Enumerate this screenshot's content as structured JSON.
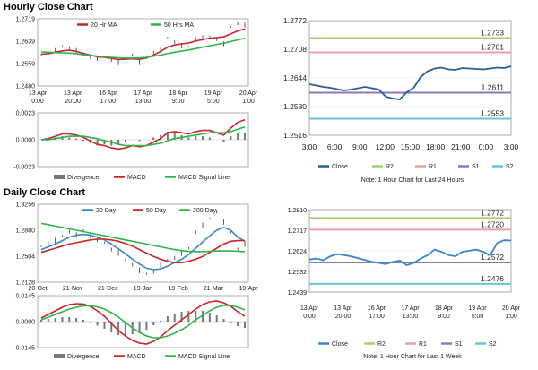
{
  "section_titles": {
    "hourly": "Hourly Close Chart",
    "daily": "Daily Close Chart"
  },
  "colors": {
    "green": "#2db34a",
    "red": "#c9252b",
    "blue": "#3c86c4",
    "navy": "#2c5e91",
    "purple": "#8a79b8",
    "olive": "#a6cf75",
    "pink": "#e7a1a4",
    "cyan": "#6cc1dc",
    "grey": "#777777"
  },
  "chart_data": [
    {
      "id": "hourly-price",
      "type": "line",
      "legend": [
        "20 Hr MA",
        "50 Hrs MA"
      ],
      "yticks": [
        "1.2719",
        "1.2639",
        "1.2559",
        "1.2480"
      ],
      "ylim": [
        1.248,
        1.2719
      ],
      "xticks": [
        [
          "13 Apr",
          "0:00"
        ],
        [
          "13 Apr",
          "20:00"
        ],
        [
          "16 Apr",
          "17:00"
        ],
        [
          "17 Apr",
          "13:00"
        ],
        [
          "18 Apr",
          "9:00"
        ],
        [
          "19 Apr",
          "5:00"
        ],
        [
          "20 Apr",
          "1:00"
        ]
      ],
      "close": [
        1.259,
        1.2596,
        1.2606,
        1.2622,
        1.2616,
        1.2607,
        1.2589,
        1.2582,
        1.2578,
        1.2585,
        1.2572,
        1.2566,
        1.2578,
        1.259,
        1.2566,
        1.2578,
        1.2599,
        1.2612,
        1.2651,
        1.2636,
        1.2622,
        1.2619,
        1.2649,
        1.2652,
        1.2655,
        1.2646,
        1.263,
        1.269,
        1.2702,
        1.2697
      ],
      "ma20": [
        1.2593,
        1.2595,
        1.26,
        1.2605,
        1.2607,
        1.2603,
        1.2596,
        1.259,
        1.2584,
        1.2582,
        1.2578,
        1.2574,
        1.2575,
        1.2577,
        1.2575,
        1.258,
        1.259,
        1.2603,
        1.2618,
        1.2626,
        1.263,
        1.2633,
        1.264,
        1.2645,
        1.265,
        1.2652,
        1.2655,
        1.2665,
        1.2676,
        1.2683
      ],
      "ma50": [
        1.2601,
        1.26,
        1.2599,
        1.2598,
        1.2597,
        1.2595,
        1.2592,
        1.2589,
        1.2586,
        1.2584,
        1.2582,
        1.258,
        1.2579,
        1.2579,
        1.258,
        1.2582,
        1.2586,
        1.259,
        1.2595,
        1.26,
        1.2604,
        1.2608,
        1.2613,
        1.2618,
        1.2623,
        1.2628,
        1.2632,
        1.2638,
        1.2644,
        1.265
      ]
    },
    {
      "id": "hourly-macd",
      "type": "line",
      "yticks": [
        "0.0023",
        "0.0000",
        "-0.0023"
      ],
      "ylim": [
        -0.0023,
        0.0023
      ],
      "legend": [
        "Divergence",
        "MACD",
        "MACD Signal Line"
      ],
      "macd": [
        0.0,
        0.0001,
        0.0003,
        0.0005,
        0.0005,
        0.0004,
        0.0002,
        -0.0001,
        -0.0004,
        -0.0005,
        -0.0007,
        -0.0008,
        -0.0007,
        -0.0005,
        -0.0006,
        -0.0005,
        -0.0002,
        0.0001,
        0.0006,
        0.0007,
        0.0006,
        0.0005,
        0.0007,
        0.0008,
        0.0008,
        0.0006,
        0.0004,
        0.001,
        0.0015,
        0.0017
      ],
      "signal": [
        0.0,
        0.0,
        0.0001,
        0.0002,
        0.0003,
        0.0003,
        0.0003,
        0.0002,
        0.0001,
        -0.0001,
        -0.0002,
        -0.0004,
        -0.0005,
        -0.0005,
        -0.0005,
        -0.0005,
        -0.0004,
        -0.0003,
        -0.0001,
        0.0001,
        0.0002,
        0.0003,
        0.0004,
        0.0005,
        0.0006,
        0.0006,
        0.0006,
        0.0007,
        0.0009,
        0.0011
      ]
    },
    {
      "id": "hourly-pivot",
      "type": "line",
      "yticks": [
        "1.2772",
        "1.2708",
        "1.2644",
        "1.2580",
        "1.2516"
      ],
      "ylim": [
        1.2516,
        1.2772
      ],
      "xticks": [
        "3:00",
        "6:00",
        "9:00",
        "12:00",
        "15:00",
        "18:00",
        "21:00",
        "0:00",
        "3:00"
      ],
      "close": [
        1.263,
        1.2627,
        1.2624,
        1.2622,
        1.2619,
        1.2616,
        1.2618,
        1.2621,
        1.2624,
        1.2621,
        1.2618,
        1.2602,
        1.2598,
        1.2596,
        1.2612,
        1.2622,
        1.2646,
        1.2659,
        1.2665,
        1.2667,
        1.2663,
        1.2662,
        1.2666,
        1.2665,
        1.2664,
        1.2663,
        1.2665,
        1.2667,
        1.2666,
        1.267
      ],
      "levels": {
        "R2": 1.2733,
        "R1": 1.2701,
        "S1": 1.2611,
        "S2": 1.2553
      },
      "level_labels": {
        "R2": "1.2733",
        "R1": "1.2701",
        "S1": "1.2611",
        "S2": "1.2553"
      },
      "legend": [
        "Close",
        "R2",
        "R1",
        "S1",
        "S2"
      ],
      "note": "Note: 1 Hour Chart for Last 24 Hours"
    },
    {
      "id": "daily-price",
      "type": "line",
      "legend": [
        "20 Day",
        "50 Day",
        "200 Day"
      ],
      "yticks": [
        "1.3256",
        "1.2880",
        "1.2504",
        "1.2128"
      ],
      "ylim": [
        1.2128,
        1.3256
      ],
      "xticks": [
        "20-Oct",
        "21-Nov",
        "21-Dec",
        "19-Jan",
        "19-Feb",
        "21-Mar",
        "19-Apr"
      ],
      "close": [
        1.265,
        1.269,
        1.273,
        1.28,
        1.286,
        1.281,
        1.288,
        1.279,
        1.275,
        1.27,
        1.26,
        1.255,
        1.245,
        1.238,
        1.23,
        1.225,
        1.228,
        1.238,
        1.245,
        1.248,
        1.255,
        1.262,
        1.285,
        1.295,
        1.305,
        1.315,
        1.3,
        1.285,
        1.26,
        1.268
      ],
      "ma20": [
        1.26,
        1.264,
        1.268,
        1.273,
        1.278,
        1.281,
        1.282,
        1.281,
        1.278,
        1.274,
        1.268,
        1.261,
        1.254,
        1.246,
        1.239,
        1.233,
        1.231,
        1.232,
        1.236,
        1.241,
        1.246,
        1.253,
        1.262,
        1.271,
        1.28,
        1.288,
        1.292,
        1.288,
        1.278,
        1.272
      ],
      "ma50": [
        1.256,
        1.259,
        1.262,
        1.265,
        1.268,
        1.27,
        1.272,
        1.274,
        1.275,
        1.275,
        1.274,
        1.272,
        1.269,
        1.265,
        1.26,
        1.255,
        1.25,
        1.246,
        1.243,
        1.241,
        1.241,
        1.243,
        1.246,
        1.25,
        1.256,
        1.262,
        1.268,
        1.272,
        1.273,
        1.273
      ],
      "ma200": [
        1.298,
        1.296,
        1.294,
        1.292,
        1.29,
        1.288,
        1.286,
        1.284,
        1.282,
        1.28,
        1.278,
        1.276,
        1.274,
        1.272,
        1.27,
        1.268,
        1.266,
        1.264,
        1.262,
        1.26,
        1.2585,
        1.2575,
        1.257,
        1.257,
        1.2575,
        1.258,
        1.258,
        1.258,
        1.2575,
        1.257
      ]
    },
    {
      "id": "daily-macd",
      "type": "line",
      "yticks": [
        "0.0145",
        "0.0000",
        "-0.0145"
      ],
      "ylim": [
        -0.0145,
        0.0145
      ],
      "legend": [
        "Divergence",
        "MACD",
        "MACD Signal Line"
      ],
      "macd": [
        0.002,
        0.004,
        0.006,
        0.008,
        0.0095,
        0.01,
        0.0098,
        0.0085,
        0.006,
        0.003,
        -0.001,
        -0.005,
        -0.008,
        -0.0105,
        -0.012,
        -0.0125,
        -0.011,
        -0.0085,
        -0.005,
        -0.002,
        0.001,
        0.004,
        0.007,
        0.0095,
        0.011,
        0.0115,
        0.0105,
        0.0085,
        0.0055,
        0.003
      ],
      "signal": [
        0.001,
        0.0025,
        0.004,
        0.0055,
        0.007,
        0.008,
        0.0088,
        0.0088,
        0.0082,
        0.007,
        0.005,
        0.0025,
        -0.0005,
        -0.0035,
        -0.006,
        -0.008,
        -0.009,
        -0.009,
        -0.008,
        -0.0065,
        -0.0045,
        -0.002,
        0.001,
        0.0035,
        0.006,
        0.008,
        0.009,
        0.009,
        0.008,
        0.0065
      ]
    },
    {
      "id": "daily-pivot",
      "type": "line",
      "yticks": [
        "1.2810",
        "1.2717",
        "1.2624",
        "1.2532",
        "1.2439"
      ],
      "ylim": [
        1.2439,
        1.281
      ],
      "xticks": [
        [
          "13 Apr",
          "0:00"
        ],
        [
          "13 Apr",
          "20:00"
        ],
        [
          "16 Apr",
          "17:00"
        ],
        [
          "17 Apr",
          "13:00"
        ],
        [
          "18 Apr",
          "9:00"
        ],
        [
          "19 Apr",
          "5:00"
        ],
        [
          "20 Apr",
          "1:00"
        ]
      ],
      "close": [
        1.2585,
        1.259,
        1.2582,
        1.26,
        1.261,
        1.2605,
        1.26,
        1.2592,
        1.2583,
        1.2575,
        1.257,
        1.2565,
        1.2575,
        1.258,
        1.256,
        1.257,
        1.259,
        1.2605,
        1.263,
        1.262,
        1.2605,
        1.26,
        1.262,
        1.2625,
        1.263,
        1.262,
        1.2605,
        1.266,
        1.2672,
        1.2671
      ],
      "levels": {
        "R2": 1.2772,
        "R1": 1.272,
        "S1": 1.2572,
        "S2": 1.2476
      },
      "level_labels": {
        "R2": "1.2772",
        "R1": "1.2720",
        "S1": "1.2572",
        "S2": "1.2476"
      },
      "legend": [
        "Close",
        "R2",
        "R1",
        "S1",
        "S2"
      ],
      "note": "Note: 1 Hour Chart for Last 1 Week"
    }
  ]
}
